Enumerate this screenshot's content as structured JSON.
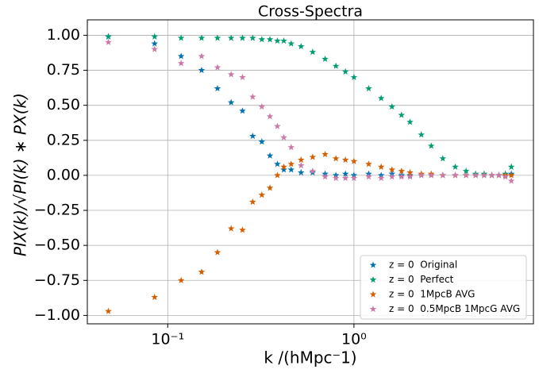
{
  "chart_data": {
    "type": "scatter",
    "title": "Cross-Spectra",
    "x_label": "k /(hMpc⁻1)",
    "y_label": "PIX(k)/√PI(k) ∗ PX(k)",
    "xscale": "log",
    "grid": true,
    "legend": "lower right",
    "marker": "star",
    "xlim": [
      0.037,
      9.2
    ],
    "ylim": [
      -1.06,
      1.11
    ],
    "xticks": [
      {
        "value": 0.1,
        "label": "10⁻¹"
      },
      {
        "value": 1,
        "label": "10⁰"
      }
    ],
    "yticks": [
      {
        "value": -1,
        "label": "−1.00"
      },
      {
        "value": -0.75,
        "label": "−0.75"
      },
      {
        "value": -0.5,
        "label": "−0.50"
      },
      {
        "value": -0.25,
        "label": "−0.25"
      },
      {
        "value": 0,
        "label": "0.00"
      },
      {
        "value": 0.25,
        "label": "0.25"
      },
      {
        "value": 0.5,
        "label": "0.50"
      },
      {
        "value": 0.75,
        "label": "0.75"
      },
      {
        "value": 1,
        "label": "1.00"
      }
    ],
    "x": [
      0.048,
      0.085,
      0.118,
      0.152,
      0.185,
      0.219,
      0.252,
      0.286,
      0.32,
      0.354,
      0.388,
      0.42,
      0.46,
      0.52,
      0.6,
      0.7,
      0.8,
      0.9,
      1.0,
      1.2,
      1.4,
      1.6,
      1.8,
      2.0,
      2.3,
      2.6,
      3.0,
      3.5,
      4.0,
      4.5,
      5.0,
      5.5,
      6.0,
      6.5,
      7.0
    ],
    "series": [
      {
        "name": "z = 0  Original",
        "color": "#0072b2",
        "values": [
          0.99,
          0.94,
          0.85,
          0.75,
          0.62,
          0.52,
          0.46,
          0.28,
          0.24,
          0.14,
          0.08,
          0.04,
          0.04,
          0.02,
          0.02,
          0.01,
          0.0,
          0.01,
          0.0,
          0.01,
          0.0,
          0.01,
          0.0,
          0.0,
          0.0,
          0.0,
          0.0,
          0.0,
          0.0,
          0.0,
          0.0,
          0.0,
          0.0,
          0.0,
          0.01
        ]
      },
      {
        "name": "z = 0  Perfect",
        "color": "#009e73",
        "values": [
          0.99,
          0.99,
          0.98,
          0.98,
          0.98,
          0.98,
          0.98,
          0.98,
          0.97,
          0.97,
          0.96,
          0.96,
          0.94,
          0.92,
          0.88,
          0.83,
          0.78,
          0.74,
          0.7,
          0.62,
          0.55,
          0.49,
          0.43,
          0.38,
          0.29,
          0.21,
          0.12,
          0.06,
          0.03,
          0.01,
          0.01,
          0.0,
          0.0,
          0.01,
          0.06
        ]
      },
      {
        "name": "z = 0  1MpcB AVG",
        "color": "#d55e00",
        "values": [
          -0.97,
          -0.87,
          -0.75,
          -0.69,
          -0.55,
          -0.38,
          -0.39,
          -0.19,
          -0.14,
          -0.09,
          0.0,
          0.06,
          0.08,
          0.11,
          0.13,
          0.15,
          0.12,
          0.11,
          0.1,
          0.08,
          0.06,
          0.04,
          0.03,
          0.02,
          0.01,
          0.01,
          0.0,
          0.0,
          0.0,
          0.0,
          0.0,
          0.0,
          0.0,
          0.0,
          0.0
        ]
      },
      {
        "name": "z = 0  0.5MpcB 1MpcG AVG",
        "color": "#cc79a7",
        "values": [
          0.95,
          0.9,
          0.8,
          0.85,
          0.77,
          0.72,
          0.7,
          0.56,
          0.49,
          0.42,
          0.35,
          0.27,
          0.2,
          0.07,
          0.03,
          -0.01,
          -0.02,
          -0.02,
          -0.02,
          -0.01,
          -0.02,
          -0.01,
          -0.01,
          -0.01,
          0.0,
          0.0,
          0.0,
          0.0,
          0.0,
          0.0,
          0.0,
          0.0,
          0.0,
          -0.01,
          -0.04
        ]
      }
    ]
  }
}
